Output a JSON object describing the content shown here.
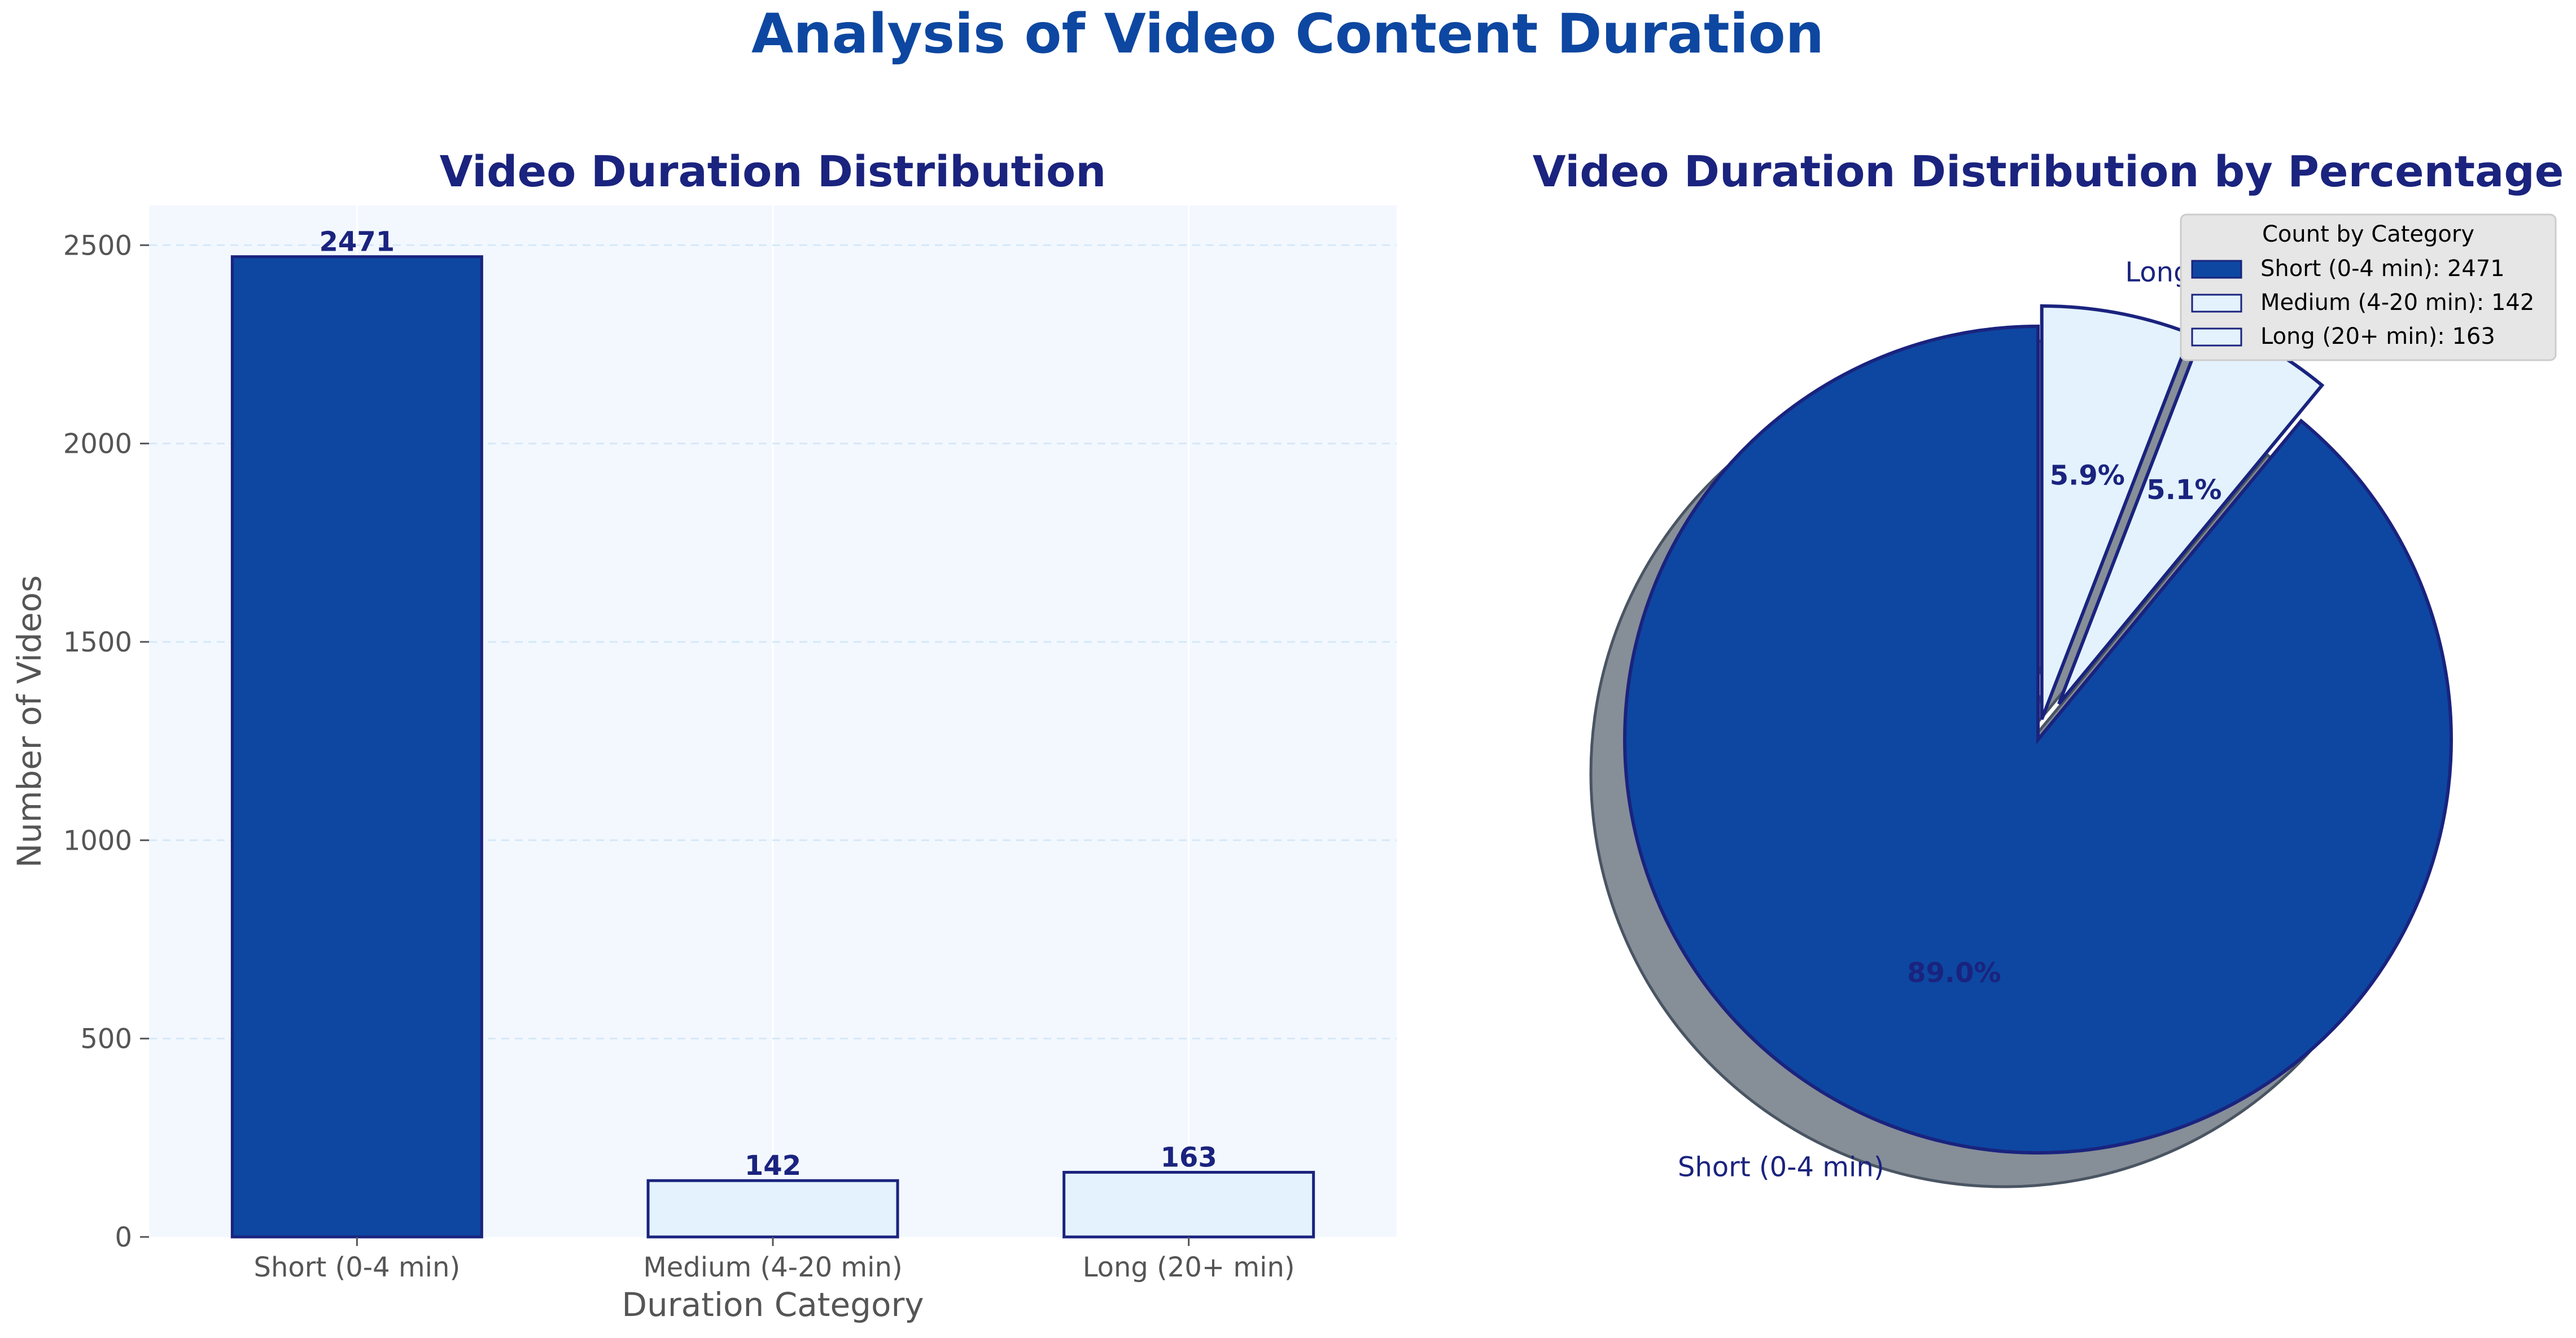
{
  "figure": {
    "title": "Analysis of Video Content Duration",
    "title_color": "#0d47a1"
  },
  "colors": {
    "dark_blue": "#0d47a1",
    "light_blue": "#e3f2fd",
    "navy": "#1a237e",
    "axes_bg": "#f3f8ff",
    "grid": "#d6e8f7",
    "shadow": "#868e98",
    "tick_text": "#555555"
  },
  "chart_data": [
    {
      "type": "bar",
      "title": "Video Duration Distribution",
      "xlabel": "Duration Category",
      "ylabel": "Number of Videos",
      "categories": [
        "Short (0-4 min)",
        "Medium (4-20 min)",
        "Long (20+ min)"
      ],
      "values": [
        2471,
        142,
        163
      ],
      "data_labels": [
        "2471",
        "142",
        "163"
      ],
      "bar_colors": [
        "#0d47a1",
        "#e3f2fd",
        "#e3f2fd"
      ],
      "ylim": [
        0,
        2600
      ],
      "yticks": [
        0,
        500,
        1000,
        1500,
        2000,
        2500
      ],
      "ytick_labels": [
        "0",
        "500",
        "1000",
        "1500",
        "2000",
        "2500"
      ],
      "grid": "y dashed"
    },
    {
      "type": "pie",
      "title": "Video Duration Distribution by Percentage",
      "labels": [
        "Short (0-4 min)",
        "Medium (4-20 min)",
        "Long (20+ min)"
      ],
      "values": [
        2471,
        142,
        163
      ],
      "percent_labels": [
        "89.0%",
        "5.1%",
        "5.9%"
      ],
      "colors": [
        "#0d47a1",
        "#e3f2fd",
        "#e3f2fd"
      ],
      "explode": [
        0,
        0.1,
        0.05
      ],
      "start_angle": 90,
      "shadow": true,
      "legend": {
        "title": "Count by Category",
        "entries": [
          "Short (0-4 min): 2471",
          "Medium (4-20 min): 142",
          "Long (20+ min): 163"
        ],
        "placement": "top-right"
      }
    }
  ]
}
